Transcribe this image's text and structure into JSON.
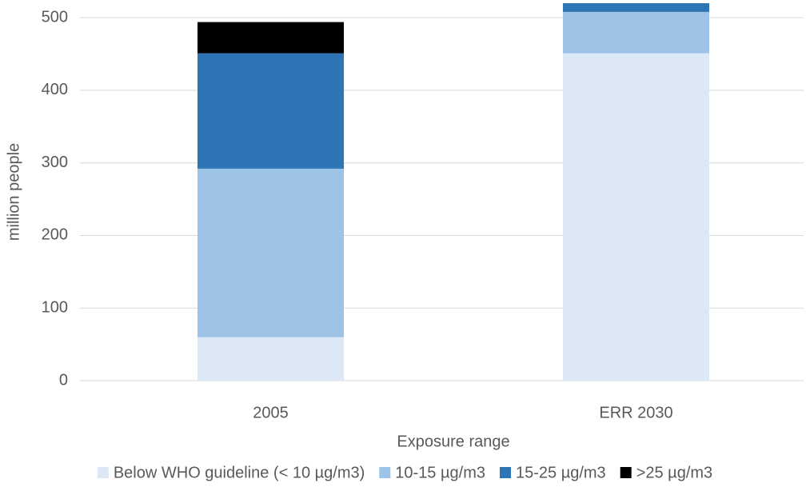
{
  "chart_data": {
    "type": "bar",
    "stacked": true,
    "x_label": "Exposure range",
    "y_label": "million people",
    "categories": [
      "2005",
      "ERR 2030"
    ],
    "series": [
      {
        "name": "Below WHO guideline (< 10 µg/m3)",
        "color": "#dde8f6",
        "values": [
          60,
          451
        ]
      },
      {
        "name": "10-15 µg/m3",
        "color": "#9dc3e6",
        "values": [
          232,
          57
        ]
      },
      {
        "name": "15-25 µg/m3",
        "color": "#2e75b6",
        "values": [
          159,
          12
        ]
      },
      {
        "name": ">25 µg/m3",
        "color": "#000000",
        "values": [
          43,
          0
        ]
      }
    ],
    "ylim": [
      0,
      520
    ],
    "yticks": [
      0,
      100,
      200,
      300,
      400,
      500
    ],
    "grid": true,
    "legend": "bottom"
  }
}
